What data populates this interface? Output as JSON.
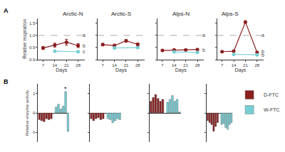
{
  "chart_data": [
    {
      "type": "line",
      "panel": "A",
      "y_label": "Relative respiration",
      "x_label": "Days",
      "xlim": [
        4,
        32
      ],
      "xticks": [
        7,
        14,
        21,
        28
      ],
      "ylim": [
        0,
        1.7
      ],
      "yticks": [
        {
          "value": 0,
          "label": "0.0"
        },
        0.5,
        {
          "value": 1,
          "label": "1.0"
        },
        1.5
      ],
      "reference": 1,
      "marker": "circle",
      "line_style": "solid",
      "subplots": [
        {
          "title": "Arctic-N",
          "series": [
            {
              "name": "D-FTC",
              "color": "#8b1e1e",
              "x": [
                7,
                14,
                21,
                28
              ],
              "values": [
                0.48,
                0.6,
                0.72,
                0.58
              ],
              "errors": [
                0.06,
                0.08,
                0.12,
                0.08
              ]
            },
            {
              "name": "W-FTC",
              "color": "#76cfd6",
              "x": [
                14,
                28
              ],
              "values": [
                0.35,
                0.33
              ],
              "errors": [
                0.04,
                0.04
              ]
            }
          ],
          "letters": [
            {
              "x": 30,
              "y": 1,
              "text": "a"
            },
            {
              "x": 30,
              "y": 0.58,
              "text": "b"
            },
            {
              "x": 30,
              "y": 0.33,
              "text": "c"
            }
          ]
        },
        {
          "title": "Arctic-S",
          "series": [
            {
              "name": "D-FTC",
              "color": "#8b1e1e",
              "x": [
                7,
                14,
                21,
                28
              ],
              "values": [
                0.62,
                0.58,
                0.78,
                0.63
              ],
              "errors": [
                0.05,
                0.06,
                0.05,
                0.06
              ]
            },
            {
              "name": "W-FTC",
              "color": "#76cfd6",
              "x": [
                14,
                28
              ],
              "values": [
                0.48,
                0.5
              ],
              "errors": [
                0.04,
                0.04
              ]
            }
          ],
          "letters": []
        },
        {
          "title": "Alps-N",
          "series": [
            {
              "name": "D-FTC",
              "color": "#8b1e1e",
              "x": [
                7,
                14,
                21,
                28
              ],
              "values": [
                0.38,
                0.4,
                0.4,
                0.42
              ],
              "errors": [
                0.03,
                0.03,
                0.03,
                0.03
              ]
            },
            {
              "name": "W-FTC",
              "color": "#76cfd6",
              "x": [
                14,
                28
              ],
              "values": [
                0.32,
                0.3
              ],
              "errors": [
                0.03,
                0.03
              ]
            }
          ],
          "letters": [
            {
              "x": 30,
              "y": 1,
              "text": "a"
            },
            {
              "x": 30,
              "y": 0.4,
              "text": "b"
            }
          ]
        },
        {
          "title": "Alps-S",
          "series": [
            {
              "name": "D-FTC",
              "color": "#8b1e1e",
              "x": [
                7,
                14,
                21,
                28
              ],
              "values": [
                0.33,
                0.35,
                1.55,
                0.3
              ],
              "errors": [
                0.03,
                0.03,
                0.05,
                0.03
              ]
            },
            {
              "name": "W-FTC",
              "color": "#76cfd6",
              "x": [
                14,
                28
              ],
              "values": [
                0.22,
                0.2
              ],
              "errors": [
                0.02,
                0.02
              ]
            }
          ],
          "letters": [
            {
              "x": 30,
              "y": 1,
              "text": "a"
            },
            {
              "x": 30,
              "y": 0.33,
              "text": "b"
            },
            {
              "x": 30,
              "y": 0.18,
              "text": "b"
            }
          ]
        }
      ]
    },
    {
      "type": "bar",
      "panel": "B",
      "y_label": "Relative enzyme activity",
      "legend": "right",
      "ylim": [
        -1.5,
        1.5
      ],
      "yticks": [
        -1,
        0,
        1
      ],
      "categories": [
        null,
        null,
        null,
        null,
        null,
        null,
        null,
        null,
        null,
        null,
        null,
        null,
        null
      ],
      "subplots": [
        {
          "series": [
            {
              "name": "D-FTC",
              "color": "#8b1e1e",
              "values": [
                -0.35,
                -0.4,
                -0.45,
                -0.3,
                -0.35,
                -0.3,
                null,
                null,
                null,
                null,
                null,
                null,
                null
              ]
            },
            {
              "name": "W-FTC",
              "color": "#76cfd6",
              "values": [
                null,
                null,
                null,
                null,
                null,
                null,
                null,
                0.3,
                0.45,
                0.2,
                0.35,
                1.1,
                -0.95
              ]
            }
          ],
          "marks": [
            {
              "x": 11,
              "y": 1.25,
              "text": "*"
            }
          ]
        },
        {
          "series": [
            {
              "name": "D-FTC",
              "color": "#8b1e1e",
              "values": [
                -0.3,
                -0.4,
                -0.3,
                -0.25,
                -0.35,
                -0.3,
                null,
                null,
                null,
                null,
                null,
                null,
                null
              ]
            },
            {
              "name": "W-FTC",
              "color": "#76cfd6",
              "values": [
                null,
                null,
                null,
                null,
                null,
                null,
                null,
                -0.3,
                -0.35,
                -0.5,
                -0.4,
                -0.3,
                -0.35
              ]
            }
          ],
          "marks": []
        },
        {
          "series": [
            {
              "name": "D-FTC",
              "color": "#8b1e1e",
              "values": [
                0.6,
                0.8,
                0.95,
                0.75,
                0.6,
                0.7,
                null,
                null,
                null,
                null,
                null,
                null,
                null
              ]
            },
            {
              "name": "W-FTC",
              "color": "#76cfd6",
              "values": [
                null,
                null,
                null,
                null,
                null,
                null,
                null,
                0.55,
                0.7,
                0.9,
                0.6,
                0.7,
                0.05
              ]
            }
          ],
          "marks": []
        },
        {
          "series": [
            {
              "name": "D-FTC",
              "color": "#8b1e1e",
              "values": [
                -0.4,
                -0.5,
                -0.6,
                -0.95,
                -0.7,
                -0.5,
                null,
                null,
                null,
                null,
                null,
                null,
                null
              ]
            },
            {
              "name": "W-FTC",
              "color": "#76cfd6",
              "values": [
                null,
                null,
                null,
                null,
                null,
                null,
                null,
                -0.6,
                -0.55,
                -0.75,
                -0.85,
                -0.6,
                -0.5
              ]
            }
          ],
          "marks": []
        }
      ]
    }
  ]
}
